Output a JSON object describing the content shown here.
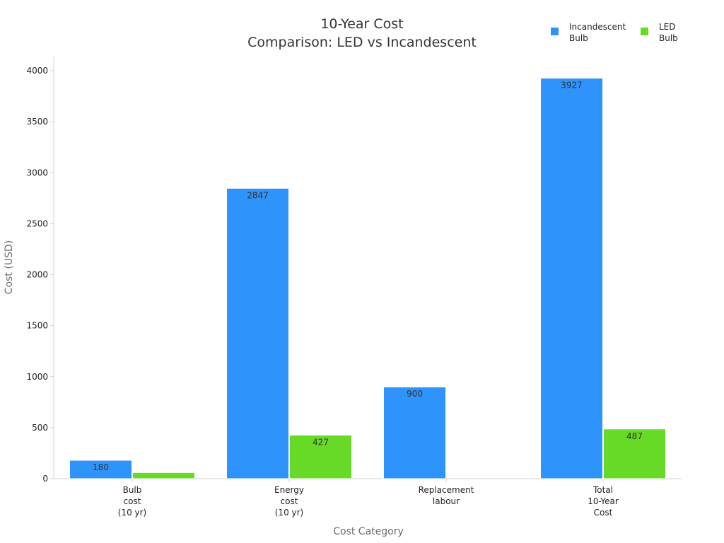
{
  "chart_data": {
    "type": "bar",
    "title": [
      "10-Year Cost",
      "Comparison: LED vs Incandescent"
    ],
    "xlabel": "Cost Category",
    "ylabel": "Cost (USD)",
    "ylim": [
      0,
      4100
    ],
    "yticks": [
      0,
      500,
      1000,
      1500,
      2000,
      2500,
      3000,
      3500,
      4000
    ],
    "grid": false,
    "legend_position": "top-right",
    "categories": [
      [
        "Bulb",
        "cost",
        "(10 yr)"
      ],
      [
        "Energy",
        "cost",
        "(10 yr)"
      ],
      [
        "Replacement",
        "labour"
      ],
      [
        "Total",
        "10-Year",
        "Cost"
      ]
    ],
    "series": [
      {
        "name": [
          "Incandescent",
          "Bulb"
        ],
        "color": "#2e93fa",
        "values": [
          180,
          2847,
          900,
          3927
        ],
        "labels": [
          "180",
          "2847",
          "900",
          "3927"
        ]
      },
      {
        "name": [
          "LED",
          "Bulb"
        ],
        "color": "#66da26",
        "values": [
          60,
          427,
          0,
          487
        ],
        "labels": [
          "",
          "427",
          "",
          "487"
        ]
      }
    ]
  }
}
